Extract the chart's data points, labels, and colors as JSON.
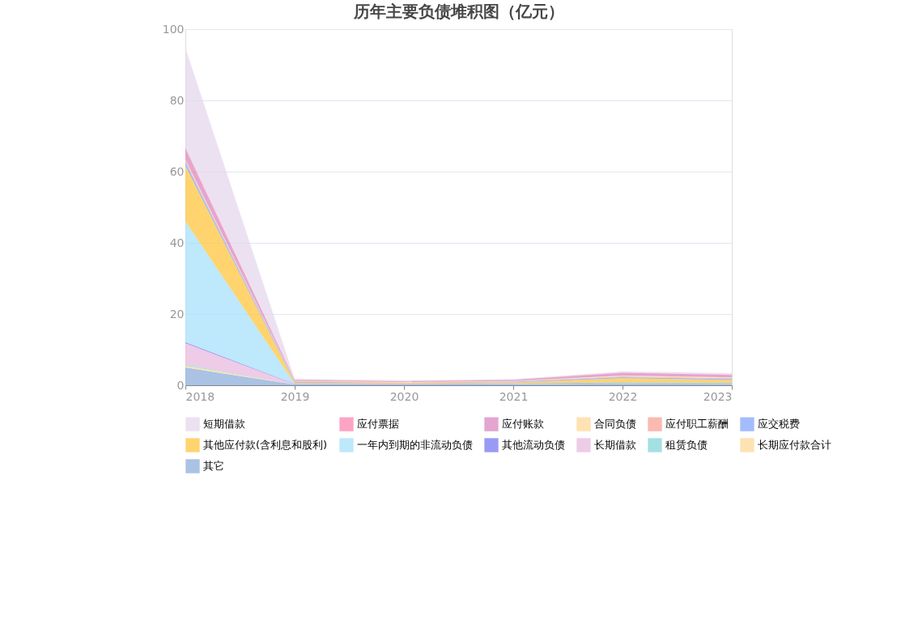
{
  "chart_data": {
    "type": "area",
    "title": "历年主要负债堆积图（亿元）",
    "stacked": true,
    "categories": [
      "2018",
      "2019",
      "2020",
      "2021",
      "2022",
      "2023"
    ],
    "ylim": [
      0,
      100
    ],
    "yticks": [
      0,
      20,
      40,
      60,
      80,
      100
    ],
    "grid": "y",
    "legend": "bottom",
    "series": [
      {
        "name": "其它",
        "color": "#8eaedb",
        "values": [
          5.0,
          0.2,
          0.2,
          0.3,
          0.5,
          0.4
        ]
      },
      {
        "name": "长期应付款合计",
        "color": "#fed89a",
        "values": [
          0.5,
          0,
          0,
          0,
          0,
          0
        ]
      },
      {
        "name": "租赁负债",
        "color": "#84d6d8",
        "values": [
          0.3,
          0.1,
          0.1,
          0.1,
          0.2,
          0.2
        ]
      },
      {
        "name": "长期借款",
        "color": "#e8bade",
        "values": [
          6.0,
          0,
          0,
          0,
          0,
          0
        ]
      },
      {
        "name": "其他流动负债",
        "color": "#7878f0",
        "values": [
          0.3,
          0.1,
          0.1,
          0.1,
          0.1,
          0.1
        ]
      },
      {
        "name": "一年内到期的非流动负债",
        "color": "#a8e0fa",
        "values": [
          34.0,
          0,
          0,
          0,
          0,
          0
        ]
      },
      {
        "name": "其他应付款(含利息和股利)",
        "color": "#ffc53d",
        "values": [
          15.5,
          0.3,
          0.2,
          0.3,
          1.2,
          0.8
        ]
      },
      {
        "name": "应交税费",
        "color": "#84a5fa",
        "values": [
          1.0,
          0.3,
          0.1,
          0.2,
          0.3,
          0.3
        ]
      },
      {
        "name": "应付职工薪酬",
        "color": "#f8a397",
        "values": [
          0.5,
          0.1,
          0.1,
          0.1,
          0.2,
          0.2
        ]
      },
      {
        "name": "合同负债",
        "color": "#fed89a",
        "values": [
          0.3,
          0.1,
          0.1,
          0.1,
          0.2,
          0.2
        ]
      },
      {
        "name": "应付账款",
        "color": "#db87c0",
        "values": [
          3.0,
          0.3,
          0.2,
          0.3,
          0.8,
          0.7
        ]
      },
      {
        "name": "应付票据",
        "color": "#fc86b1",
        "values": [
          0.4,
          0.1,
          0.1,
          0.1,
          0.1,
          0.1
        ]
      },
      {
        "name": "短期借款",
        "color": "#e6d7ec",
        "values": [
          28.0,
          0.2,
          0.2,
          0.1,
          0.3,
          0.4
        ]
      }
    ]
  }
}
